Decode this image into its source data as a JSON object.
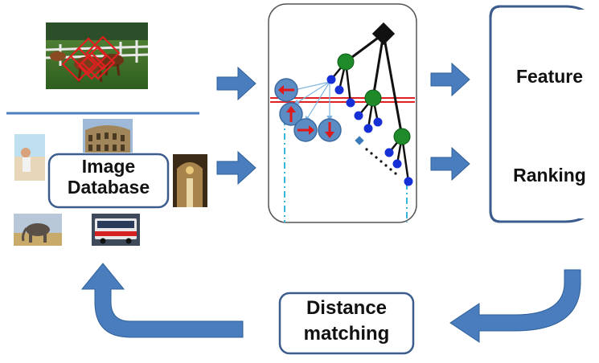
{
  "labels": {
    "image_database_line1": "Image",
    "image_database_line2": "Database",
    "feature": "Feature",
    "ranking": "Ranking",
    "distance_line1": "Distance",
    "distance_line2": "matching"
  },
  "colors": {
    "arrow_fill": "#4a7dbd",
    "arrow_stroke": "#2e5f99",
    "box_border": "#3b5c8c",
    "divider": "#4f7fbf",
    "tree_line": "#111111",
    "green_node": "#1f8a2a",
    "blue_node": "#1530d6",
    "split_line": "#e02020",
    "dashed_line": "#38b6d8",
    "vector_circle": "#5b8cc4",
    "vector_arrow": "#e01818"
  }
}
